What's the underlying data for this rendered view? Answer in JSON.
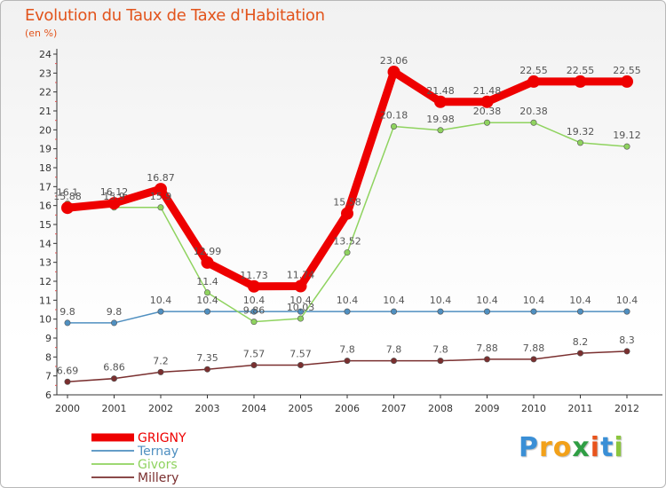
{
  "chart_data": {
    "type": "line",
    "title": "Evolution du Taux de Taxe d'Habitation",
    "subtitle": "(en %)",
    "x": [
      "2000",
      "2001",
      "2002",
      "2003",
      "2004",
      "2005",
      "2006",
      "2007",
      "2008",
      "2009",
      "2010",
      "2011",
      "2012"
    ],
    "ylim": [
      6,
      24
    ],
    "yticks": [
      6,
      7,
      8,
      9,
      10,
      11,
      12,
      13,
      14,
      15,
      16,
      17,
      18,
      19,
      20,
      21,
      22,
      23,
      24
    ],
    "grid": false,
    "legend_position": "bottom-left",
    "series": [
      {
        "name": "GRIGNY",
        "color": "#ee0000",
        "values": [
          15.88,
          16.12,
          16.87,
          12.99,
          11.73,
          11.74,
          15.58,
          23.06,
          21.48,
          21.48,
          22.55,
          22.55,
          22.55
        ],
        "labels": [
          "15.88",
          "16.12",
          "16.87",
          "12.99",
          "11.73",
          "11.74",
          "15.58",
          "23.06",
          "21.48",
          "21.48",
          "22.55",
          "22.55",
          "22.55"
        ]
      },
      {
        "name": "Ternay",
        "color": "#4f8fc0",
        "values": [
          9.8,
          9.8,
          10.4,
          10.4,
          10.4,
          10.4,
          10.4,
          10.4,
          10.4,
          10.4,
          10.4,
          10.4,
          10.4
        ],
        "labels": [
          "9.8",
          "9.8",
          "10.4",
          "10.4",
          "10.4",
          "10.4",
          "10.4",
          "10.4",
          "10.4",
          "10.4",
          "10.4",
          "10.4",
          "10.4"
        ]
      },
      {
        "name": "Givors",
        "color": "#8fd35f",
        "values": [
          16.1,
          15.9,
          15.9,
          11.4,
          9.86,
          10.03,
          13.52,
          20.18,
          19.98,
          20.38,
          20.38,
          19.32,
          19.12
        ],
        "labels": [
          "16.1",
          "15.9",
          "15.9",
          "11.4",
          "9.86",
          "10.03",
          "13.52",
          "20.18",
          "19.98",
          "20.38",
          "20.38",
          "19.32",
          "19.12"
        ]
      },
      {
        "name": "Millery",
        "color": "#7a2f2f",
        "values": [
          6.69,
          6.86,
          7.2,
          7.35,
          7.57,
          7.57,
          7.8,
          7.8,
          7.8,
          7.88,
          7.88,
          8.2,
          8.3
        ],
        "labels": [
          "6.69",
          "6.86",
          "7.2",
          "7.35",
          "7.57",
          "7.57",
          "7.8",
          "7.8",
          "7.8",
          "7.88",
          "7.88",
          "8.2",
          "8.3"
        ]
      }
    ]
  },
  "logo": {
    "text": "Proxiti",
    "letters": [
      "P",
      "r",
      "o",
      "x",
      "i",
      "t",
      "i"
    ],
    "colors": [
      "#3a8fd6",
      "#f2a11a",
      "#f2a11a",
      "#2f9e44",
      "#e8541c",
      "#3a8fd6",
      "#8cc63f"
    ]
  }
}
